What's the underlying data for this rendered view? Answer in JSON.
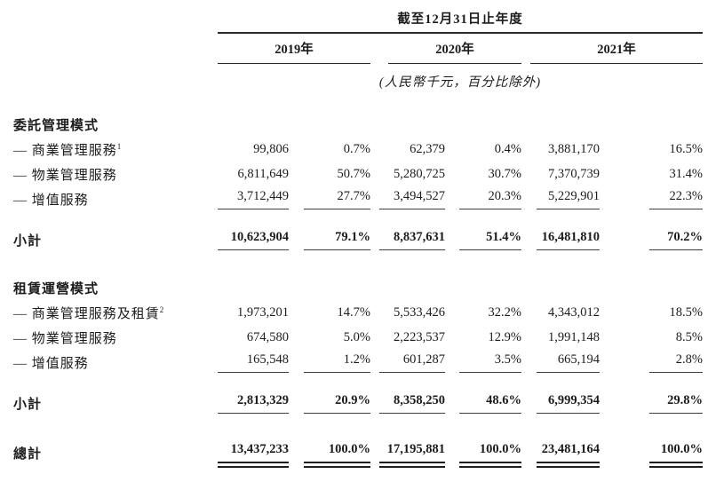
{
  "header": {
    "period_title": "截至12月31日止年度",
    "years": [
      "2019年",
      "2020年",
      "2021年"
    ],
    "unit_note": "(人民幣千元，百分比除外)"
  },
  "table": {
    "column_groups": [
      "2019年",
      "2020年",
      "2021年"
    ],
    "sections": [
      {
        "title": "委託管理模式",
        "rows": [
          {
            "label": "— 商業管理服務",
            "sup": "1",
            "values": [
              "99,806",
              "0.7%",
              "62,379",
              "0.4%",
              "3,881,170",
              "16.5%"
            ]
          },
          {
            "label": "— 物業管理服務",
            "sup": "",
            "values": [
              "6,811,649",
              "50.7%",
              "5,280,725",
              "30.7%",
              "7,370,739",
              "31.4%"
            ]
          },
          {
            "label": "— 增值服務",
            "sup": "",
            "values": [
              "3,712,449",
              "27.7%",
              "3,494,527",
              "20.3%",
              "5,229,901",
              "22.3%"
            ]
          }
        ],
        "subtotal": {
          "label": "小計",
          "values": [
            "10,623,904",
            "79.1%",
            "8,837,631",
            "51.4%",
            "16,481,810",
            "70.2%"
          ]
        }
      },
      {
        "title": "租賃運營模式",
        "rows": [
          {
            "label": "— 商業管理服務及租賃",
            "sup": "2",
            "values": [
              "1,973,201",
              "14.7%",
              "5,533,426",
              "32.2%",
              "4,343,012",
              "18.5%"
            ]
          },
          {
            "label": "— 物業管理服務",
            "sup": "",
            "values": [
              "674,580",
              "5.0%",
              "2,223,537",
              "12.9%",
              "1,991,148",
              "8.5%"
            ]
          },
          {
            "label": "— 增值服務",
            "sup": "",
            "values": [
              "165,548",
              "1.2%",
              "601,287",
              "3.5%",
              "665,194",
              "2.8%"
            ]
          }
        ],
        "subtotal": {
          "label": "小計",
          "values": [
            "2,813,329",
            "20.9%",
            "8,358,250",
            "48.6%",
            "6,999,354",
            "29.8%"
          ]
        }
      }
    ],
    "total": {
      "label": "總計",
      "values": [
        "13,437,233",
        "100.0%",
        "17,195,881",
        "100.0%",
        "23,481,164",
        "100.0%"
      ]
    }
  }
}
